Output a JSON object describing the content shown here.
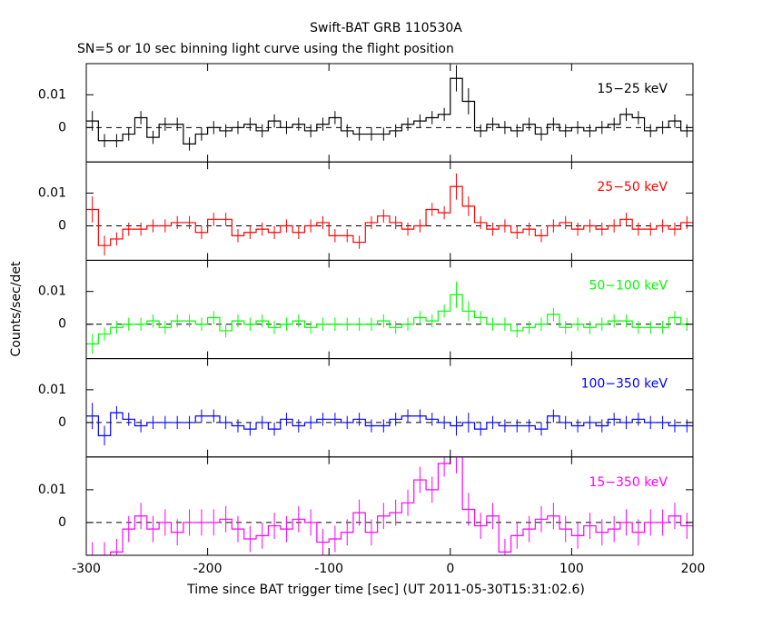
{
  "chart_data": {
    "type": "step",
    "title": "Swift-BAT GRB 110530A",
    "subtitle": "SN=5 or 10 sec binning light curve using the flight position",
    "xlabel": "Time since BAT trigger time [sec] (UT 2011-05-30T15:31:02.6)",
    "ylabel": "Counts/sec/det",
    "xlim": [
      -300,
      200
    ],
    "xticks": [
      -300,
      -200,
      -100,
      0,
      100,
      200
    ],
    "x": [
      -295,
      -285,
      -275,
      -265,
      -255,
      -245,
      -235,
      -225,
      -215,
      -205,
      -195,
      -185,
      -175,
      -165,
      -155,
      -145,
      -135,
      -125,
      -115,
      -105,
      -95,
      -85,
      -75,
      -65,
      -55,
      -45,
      -35,
      -25,
      -15,
      -5,
      5,
      15,
      25,
      35,
      45,
      55,
      65,
      75,
      85,
      95,
      105,
      115,
      125,
      135,
      145,
      155,
      165,
      175,
      185,
      195
    ],
    "series": [
      {
        "name": "15−25 keV",
        "color": "#000000",
        "ylim": [
          -0.0105,
          0.0195
        ],
        "yticks": [
          0,
          0.01
        ],
        "values": [
          0.002,
          -0.004,
          -0.004,
          -0.002,
          0.003,
          -0.003,
          0.001,
          0.001,
          -0.005,
          -0.002,
          0,
          -0.001,
          0,
          0.001,
          -0.001,
          0.002,
          0,
          0.001,
          -0.001,
          0.001,
          0.003,
          -0.001,
          -0.002,
          -0.002,
          -0.002,
          -0.001,
          0.001,
          0.002,
          0.003,
          0.004,
          0.015,
          0.008,
          -0.001,
          0.001,
          0,
          -0.001,
          0.001,
          -0.002,
          0.001,
          -0.001,
          0,
          -0.001,
          0,
          0.001,
          0.004,
          0.003,
          -0.001,
          0,
          0.002,
          -0.001
        ],
        "errors": [
          0.003,
          0.002,
          0.002,
          0.002,
          0.002,
          0.002,
          0.002,
          0.002,
          0.002,
          0.002,
          0.002,
          0.002,
          0.002,
          0.002,
          0.002,
          0.002,
          0.002,
          0.002,
          0.002,
          0.002,
          0.002,
          0.002,
          0.002,
          0.002,
          0.002,
          0.002,
          0.002,
          0.002,
          0.002,
          0.002,
          0.004,
          0.004,
          0.002,
          0.002,
          0.002,
          0.002,
          0.002,
          0.002,
          0.002,
          0.002,
          0.002,
          0.002,
          0.002,
          0.002,
          0.002,
          0.002,
          0.002,
          0.002,
          0.002,
          0.002
        ]
      },
      {
        "name": "25−50 keV",
        "color": "#ff0000",
        "ylim": [
          -0.0105,
          0.0195
        ],
        "yticks": [
          0,
          0.01
        ],
        "values": [
          0.005,
          -0.006,
          -0.004,
          -0.001,
          -0.001,
          0,
          0,
          0.001,
          0.001,
          -0.002,
          0.002,
          0.002,
          -0.003,
          -0.002,
          -0.001,
          -0.002,
          0,
          -0.002,
          0,
          0.001,
          -0.003,
          -0.003,
          -0.005,
          0.001,
          0.003,
          0.001,
          -0.001,
          0,
          0.005,
          0.004,
          0.012,
          0.006,
          0.001,
          -0.001,
          0,
          -0.002,
          -0.001,
          -0.003,
          0,
          0.001,
          -0.001,
          0,
          -0.001,
          0,
          0.002,
          -0.001,
          -0.001,
          0,
          -0.001,
          0.001
        ],
        "errors": [
          0.004,
          0.003,
          0.002,
          0.002,
          0.002,
          0.002,
          0.002,
          0.002,
          0.002,
          0.002,
          0.002,
          0.002,
          0.002,
          0.002,
          0.002,
          0.002,
          0.002,
          0.002,
          0.002,
          0.002,
          0.002,
          0.002,
          0.002,
          0.002,
          0.002,
          0.002,
          0.002,
          0.002,
          0.002,
          0.002,
          0.004,
          0.003,
          0.002,
          0.002,
          0.002,
          0.002,
          0.002,
          0.002,
          0.002,
          0.002,
          0.002,
          0.002,
          0.002,
          0.002,
          0.002,
          0.002,
          0.002,
          0.002,
          0.002,
          0.002
        ]
      },
      {
        "name": "50−100 keV",
        "color": "#00ff00",
        "ylim": [
          -0.0105,
          0.0195
        ],
        "yticks": [
          0,
          0.01
        ],
        "values": [
          -0.006,
          -0.003,
          -0.001,
          0,
          0,
          0.001,
          -0.001,
          0.001,
          0.001,
          0,
          0.002,
          -0.002,
          0.001,
          0,
          0.001,
          -0.001,
          0,
          0.001,
          -0.001,
          0,
          0,
          0,
          0,
          0,
          0.001,
          -0.001,
          0,
          0.002,
          0.001,
          0.004,
          0.009,
          0.004,
          0.002,
          0,
          0,
          -0.002,
          -0.001,
          0,
          0.003,
          -0.001,
          0,
          -0.001,
          0,
          0.001,
          0.001,
          -0.001,
          -0.001,
          -0.001,
          0.002,
          0
        ],
        "errors": [
          0.003,
          0.002,
          0.002,
          0.002,
          0.002,
          0.002,
          0.002,
          0.002,
          0.002,
          0.002,
          0.002,
          0.002,
          0.002,
          0.002,
          0.002,
          0.002,
          0.002,
          0.002,
          0.002,
          0.002,
          0.002,
          0.002,
          0.002,
          0.002,
          0.002,
          0.002,
          0.002,
          0.002,
          0.002,
          0.002,
          0.004,
          0.003,
          0.002,
          0.002,
          0.002,
          0.002,
          0.002,
          0.002,
          0.002,
          0.002,
          0.002,
          0.002,
          0.002,
          0.002,
          0.002,
          0.002,
          0.002,
          0.002,
          0.002,
          0.002
        ]
      },
      {
        "name": "100−350 keV",
        "color": "#0000ff",
        "ylim": [
          -0.0105,
          0.0195
        ],
        "yticks": [
          0,
          0.01
        ],
        "values": [
          0.002,
          -0.004,
          0.003,
          0.001,
          -0.001,
          0,
          0,
          0,
          0,
          0.002,
          0.002,
          0,
          -0.001,
          -0.002,
          0,
          -0.002,
          0.001,
          -0.001,
          0,
          0.001,
          0.001,
          0,
          0.001,
          -0.001,
          -0.001,
          0.001,
          0.002,
          0.002,
          0.001,
          0,
          -0.001,
          0,
          -0.002,
          0,
          -0.001,
          -0.001,
          -0.001,
          -0.002,
          0.002,
          0,
          -0.001,
          0,
          -0.001,
          0.001,
          0,
          0.001,
          0,
          0,
          -0.001,
          -0.001
        ],
        "errors": [
          0.004,
          0.003,
          0.002,
          0.002,
          0.002,
          0.002,
          0.002,
          0.002,
          0.002,
          0.002,
          0.002,
          0.002,
          0.002,
          0.002,
          0.002,
          0.002,
          0.002,
          0.002,
          0.002,
          0.002,
          0.002,
          0.002,
          0.002,
          0.002,
          0.002,
          0.002,
          0.002,
          0.002,
          0.002,
          0.002,
          0.003,
          0.003,
          0.002,
          0.002,
          0.002,
          0.002,
          0.002,
          0.002,
          0.002,
          0.002,
          0.002,
          0.002,
          0.002,
          0.002,
          0.002,
          0.002,
          0.002,
          0.002,
          0.002,
          0.002
        ]
      },
      {
        "name": "15−350 keV",
        "color": "#ff00ff",
        "ylim": [
          -0.01,
          0.02
        ],
        "yticks": [
          0,
          0.01
        ],
        "values": [
          -0.01,
          -0.01,
          -0.009,
          -0.002,
          0.002,
          -0.002,
          0,
          -0.003,
          0,
          0,
          0,
          0.001,
          -0.002,
          -0.005,
          -0.004,
          -0.001,
          -0.002,
          0.001,
          0,
          -0.006,
          -0.005,
          -0.003,
          0.003,
          -0.003,
          0.002,
          0.003,
          0.006,
          0.013,
          0.01,
          0.018,
          0.02,
          0.004,
          -0.001,
          0.002,
          -0.009,
          -0.004,
          -0.002,
          0.001,
          0.002,
          -0.002,
          -0.004,
          -0.001,
          -0.003,
          -0.002,
          0,
          -0.003,
          0,
          0,
          0.002,
          -0.001
        ],
        "errors": [
          0.004,
          0.004,
          0.004,
          0.004,
          0.004,
          0.004,
          0.004,
          0.004,
          0.004,
          0.004,
          0.004,
          0.004,
          0.004,
          0.004,
          0.004,
          0.004,
          0.004,
          0.004,
          0.004,
          0.004,
          0.004,
          0.004,
          0.004,
          0.004,
          0.004,
          0.004,
          0.004,
          0.004,
          0.004,
          0.004,
          0.005,
          0.005,
          0.004,
          0.004,
          0.004,
          0.004,
          0.004,
          0.004,
          0.004,
          0.004,
          0.004,
          0.004,
          0.004,
          0.004,
          0.004,
          0.004,
          0.004,
          0.004,
          0.004,
          0.004
        ]
      }
    ]
  }
}
